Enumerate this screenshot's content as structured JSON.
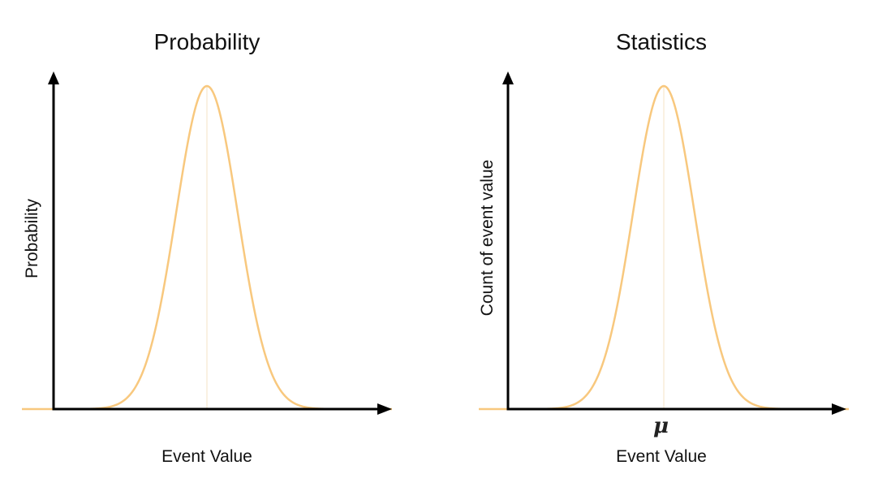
{
  "colors": {
    "curve": "#f8c87e",
    "mean_line": "#f6e3c4",
    "axis": "#000000"
  },
  "chart_data": [
    {
      "type": "line",
      "curve": "normal distribution",
      "title": "Probability",
      "xlabel": "Event Value",
      "ylabel": "Probability",
      "mean_marker": "",
      "grid": false
    },
    {
      "type": "line",
      "curve": "normal distribution",
      "title": "Statistics",
      "xlabel": "Event Value",
      "ylabel": "Count of event value",
      "mean_marker": "μ",
      "grid": false
    }
  ]
}
